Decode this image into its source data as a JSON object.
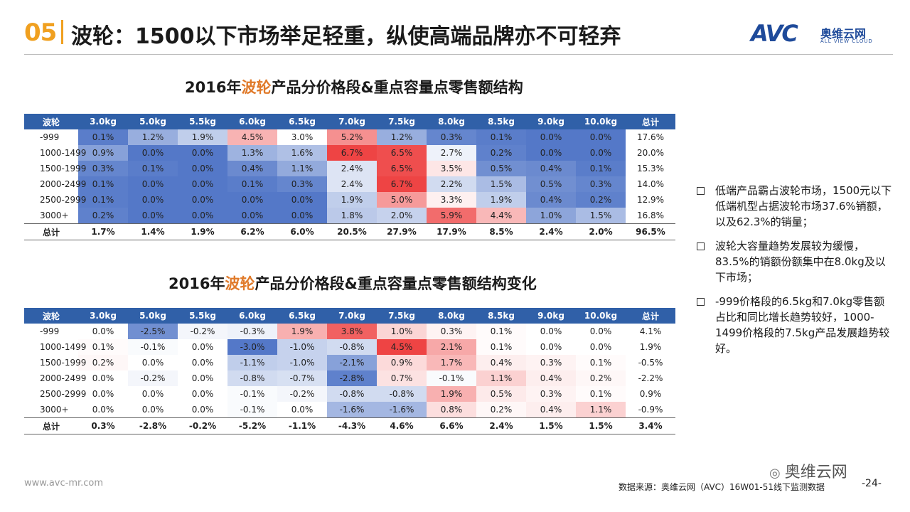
{
  "header": {
    "section_number": "05",
    "title": "波轮：1500以下市场举足轻重，纵使高端品牌亦不可轻弃",
    "logo_text": "AVC",
    "logo_cn": "奥维云网",
    "logo_en": "ALL VIEW CLOUD"
  },
  "colors": {
    "accent": "#f0a020",
    "header_blue": "#3060a8",
    "highlight_orange": "#e07a2a"
  },
  "table1": {
    "title_pre": "2016年",
    "title_hl": "波轮",
    "title_post": "产品分价格段&重点容量点零售额结构",
    "columns": [
      "波轮",
      "3.0kg",
      "5.0kg",
      "5.5kg",
      "6.0kg",
      "6.5kg",
      "7.0kg",
      "7.5kg",
      "8.0kg",
      "8.5kg",
      "9.0kg",
      "10.0kg",
      "总计"
    ],
    "rows": [
      {
        "label": "-999",
        "cells": [
          "0.1%",
          "1.2%",
          "1.9%",
          "4.5%",
          "3.0%",
          "5.2%",
          "1.2%",
          "0.3%",
          "0.1%",
          "0.0%",
          "0.0%",
          "17.6%"
        ]
      },
      {
        "label": "1000-1499",
        "cells": [
          "0.9%",
          "0.0%",
          "0.0%",
          "1.3%",
          "1.6%",
          "6.7%",
          "6.5%",
          "2.7%",
          "0.2%",
          "0.0%",
          "0.0%",
          "20.0%"
        ]
      },
      {
        "label": "1500-1999",
        "cells": [
          "0.3%",
          "0.1%",
          "0.0%",
          "0.4%",
          "1.1%",
          "2.4%",
          "6.5%",
          "3.5%",
          "0.5%",
          "0.4%",
          "0.1%",
          "15.3%"
        ]
      },
      {
        "label": "2000-2499",
        "cells": [
          "0.1%",
          "0.0%",
          "0.0%",
          "0.1%",
          "0.3%",
          "2.4%",
          "6.7%",
          "2.2%",
          "1.5%",
          "0.5%",
          "0.3%",
          "14.0%"
        ]
      },
      {
        "label": "2500-2999",
        "cells": [
          "0.1%",
          "0.0%",
          "0.0%",
          "0.0%",
          "0.0%",
          "1.9%",
          "5.0%",
          "3.3%",
          "1.9%",
          "0.4%",
          "0.2%",
          "12.9%"
        ]
      },
      {
        "label": "3000+",
        "cells": [
          "0.2%",
          "0.0%",
          "0.0%",
          "0.0%",
          "0.0%",
          "1.8%",
          "2.0%",
          "5.9%",
          "4.4%",
          "1.0%",
          "1.5%",
          "16.8%"
        ]
      }
    ],
    "total": {
      "label": "总计",
      "cells": [
        "1.7%",
        "1.4%",
        "1.9%",
        "6.2%",
        "6.0%",
        "20.5%",
        "27.9%",
        "17.9%",
        "8.5%",
        "2.4%",
        "2.0%",
        "96.5%"
      ]
    }
  },
  "table2": {
    "title_pre": "2016年",
    "title_hl": "波轮",
    "title_post": "产品分价格段&重点容量点零售额结构变化",
    "columns": [
      "波轮",
      "3.0kg",
      "5.0kg",
      "5.5kg",
      "6.0kg",
      "6.5kg",
      "7.0kg",
      "7.5kg",
      "8.0kg",
      "8.5kg",
      "9.0kg",
      "10.0kg",
      "总计"
    ],
    "rows": [
      {
        "label": "-999",
        "cells": [
          "0.0%",
          "-2.5%",
          "-0.2%",
          "-0.3%",
          "1.9%",
          "3.8%",
          "1.0%",
          "0.3%",
          "0.1%",
          "0.0%",
          "0.0%",
          "4.1%"
        ]
      },
      {
        "label": "1000-1499",
        "cells": [
          "0.1%",
          "-0.1%",
          "0.0%",
          "-3.0%",
          "-1.0%",
          "-0.8%",
          "4.5%",
          "2.1%",
          "0.1%",
          "0.0%",
          "0.0%",
          "1.9%"
        ]
      },
      {
        "label": "1500-1999",
        "cells": [
          "0.2%",
          "0.0%",
          "0.0%",
          "-1.1%",
          "-1.0%",
          "-2.1%",
          "0.9%",
          "1.7%",
          "0.4%",
          "0.3%",
          "0.1%",
          "-0.5%"
        ]
      },
      {
        "label": "2000-2499",
        "cells": [
          "0.0%",
          "-0.2%",
          "0.0%",
          "-0.8%",
          "-0.7%",
          "-2.8%",
          "0.7%",
          "-0.1%",
          "1.1%",
          "0.4%",
          "0.2%",
          "-2.2%"
        ]
      },
      {
        "label": "2500-2999",
        "cells": [
          "0.0%",
          "0.0%",
          "0.0%",
          "-0.1%",
          "-0.2%",
          "-0.8%",
          "-0.8%",
          "1.9%",
          "0.5%",
          "0.3%",
          "0.1%",
          "0.9%"
        ]
      },
      {
        "label": "3000+",
        "cells": [
          "0.0%",
          "0.0%",
          "0.0%",
          "-0.1%",
          "0.0%",
          "-1.6%",
          "-1.6%",
          "0.8%",
          "0.2%",
          "0.4%",
          "1.1%",
          "-0.9%"
        ]
      }
    ],
    "total": {
      "label": "总计",
      "cells": [
        "0.3%",
        "-2.8%",
        "-0.2%",
        "-5.2%",
        "-1.1%",
        "-4.3%",
        "4.6%",
        "6.6%",
        "2.4%",
        "1.5%",
        "1.5%",
        "3.4%"
      ]
    }
  },
  "bullets": [
    "低端产品霸占波轮市场，1500元以下低端机型占据波轮市场37.6%销额，以及62.3%的销量；",
    "波轮大容量趋势发展较为缓慢，83.5%的销额份额集中在8.0kg及以下市场；",
    "-999价格段的6.5kg和7.0kg零售额占比和同比增长趋势较好，1000-1499价格段的7.5kg产品发展趋势较好。"
  ],
  "footer": {
    "url": "www.avc-mr.com",
    "source": "数据来源：奥维云网（AVC）16W01-51线下监测数据",
    "page": "-24-",
    "wechat": "奥维云网"
  }
}
